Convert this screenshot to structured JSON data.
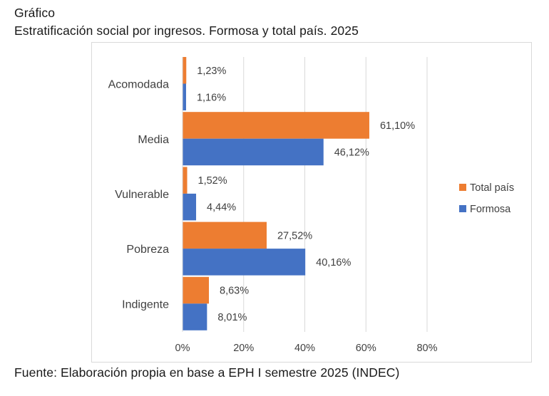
{
  "header": {
    "label": "Gráfico",
    "title": "Estratificación social por ingresos. Formosa y total país. 2025"
  },
  "footer": {
    "source": "Fuente: Elaboración propia en base a EPH I semestre 2025 (INDEC)"
  },
  "chart_data": {
    "type": "bar",
    "orientation": "horizontal",
    "title": "",
    "xlabel": "",
    "ylabel": "",
    "xlim": [
      0,
      80
    ],
    "x_ticks": [
      "0%",
      "20%",
      "40%",
      "60%",
      "80%"
    ],
    "grid": true,
    "legend_position": "right",
    "categories": [
      "Acomodada",
      "Media",
      "Vulnerable",
      "Pobreza",
      "Indigente"
    ],
    "series": [
      {
        "name": "Total país",
        "color": "#ED7D31",
        "values": [
          1.23,
          61.1,
          1.52,
          27.52,
          8.63
        ],
        "labels": [
          "1,23%",
          "61,10%",
          "1,52%",
          "27,52%",
          "8,63%"
        ]
      },
      {
        "name": "Formosa",
        "color": "#4472C4",
        "values": [
          1.16,
          46.12,
          4.44,
          40.16,
          8.01
        ],
        "labels": [
          "1,16%",
          "46,12%",
          "4,44%",
          "40,16%",
          "8,01%"
        ]
      }
    ]
  }
}
